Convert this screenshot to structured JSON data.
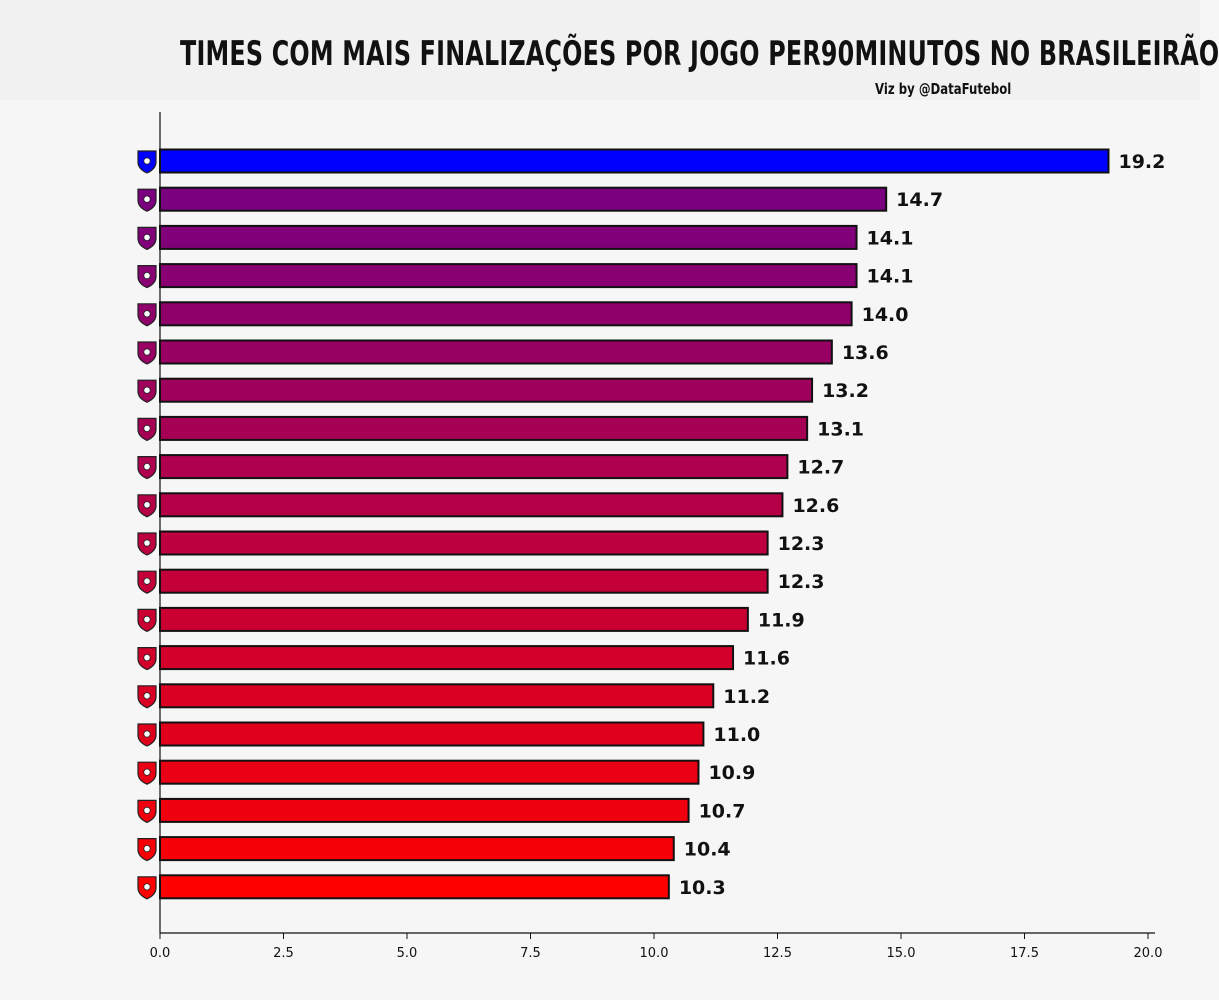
{
  "title": "TIMES COM MAIS FINALIZAÇÕES POR JOGO PER90MINUTOS NO BRASILEIRÃO",
  "credit": "Viz by @DataFutebol",
  "chart_data": {
    "type": "bar",
    "orientation": "horizontal",
    "categories": [
      "atletico-mg-logo",
      "red-bull-bragantino-logo",
      "internacional-logo",
      "atletico-mg-logo-2",
      "flamengo-logo",
      "botafogo-logo",
      "cruzeiro-logo",
      "palmeiras-logo",
      "santos-logo",
      "sport-logo",
      "fluminense-logo",
      "vitoria-logo",
      "vasco-logo",
      "sao-paulo-logo",
      "fortaleza-logo",
      "corinthians-logo",
      "ceara-logo",
      "gremio-logo",
      "bahia-logo",
      "juventude-logo"
    ],
    "values": [
      19.2,
      14.7,
      14.1,
      14.1,
      14.0,
      13.6,
      13.2,
      13.1,
      12.7,
      12.6,
      12.3,
      12.3,
      11.9,
      11.6,
      11.2,
      11.0,
      10.9,
      10.7,
      10.4,
      10.3
    ],
    "value_labels": [
      "19.2",
      "14.7",
      "14.1",
      "14.1",
      "14.0",
      "13.6",
      "13.2",
      "13.1",
      "12.7",
      "12.6",
      "12.3",
      "12.3",
      "11.9",
      "11.6",
      "11.2",
      "11.0",
      "10.9",
      "10.7",
      "10.4",
      "10.3"
    ],
    "xlim": [
      0,
      20
    ],
    "xticks": [
      "0.0",
      "2.5",
      "5.0",
      "7.5",
      "10.0",
      "12.5",
      "15.0",
      "17.5",
      "20.0"
    ],
    "xlabel": "",
    "ylabel": "",
    "grid": false,
    "colors": {
      "highlight": "#0000ff",
      "gradient_start": "#7a0080",
      "gradient_end": "#ff0000",
      "edge": "#111111"
    }
  }
}
